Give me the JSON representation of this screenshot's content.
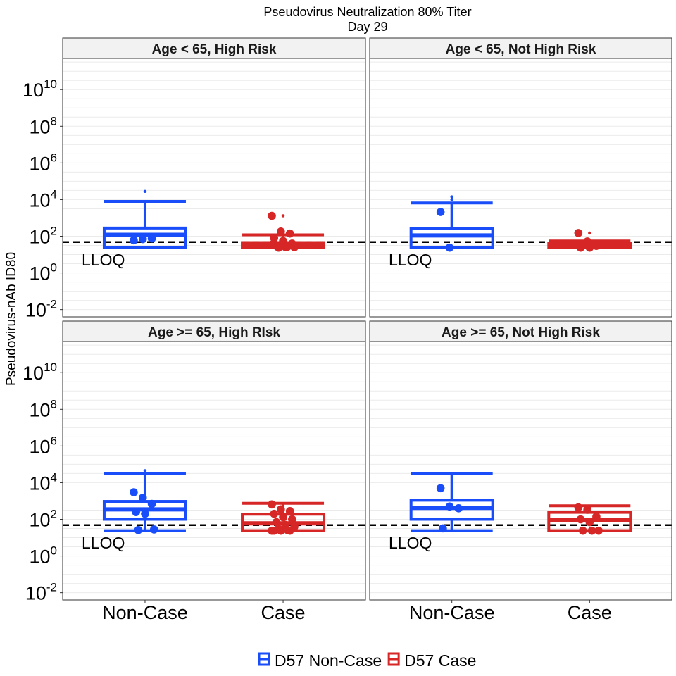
{
  "chart_data": {
    "type": "box",
    "title": "Pseudovirus Neutralization 80% Titer",
    "subtitle": "Day 29",
    "ylabel": "Pseudovirus-nAb ID80",
    "xlabel": "",
    "y_scale": "log10",
    "ylim": [
      0.004,
      500000000000
    ],
    "y_ticks": [
      0.01,
      1,
      100,
      10000,
      1000000,
      100000000,
      10000000000
    ],
    "y_tick_labels": [
      {
        "base": "10",
        "exp": "-2"
      },
      {
        "base": "10",
        "exp": "0"
      },
      {
        "base": "10",
        "exp": "2"
      },
      {
        "base": "10",
        "exp": "4"
      },
      {
        "base": "10",
        "exp": "6"
      },
      {
        "base": "10",
        "exp": "8"
      },
      {
        "base": "10",
        "exp": "10"
      }
    ],
    "categories": [
      "Non-Case",
      "Case"
    ],
    "lloq": {
      "value": 48,
      "label": "LLOQ"
    },
    "legend": {
      "position": "bottom",
      "entries": [
        {
          "label": "D57 Non-Case",
          "color": "#1a4dfa"
        },
        {
          "label": "D57 Case",
          "color": "#d62626"
        }
      ]
    },
    "colors": {
      "Non-Case": "#1a4dfa",
      "Case": "#d62626"
    },
    "panels": [
      {
        "label": "Age < 65, High Risk",
        "boxes": [
          {
            "group": "Non-Case",
            "lower_whisker": 24,
            "q1": 24,
            "median": 120,
            "q3": 280,
            "upper_whisker": 8000,
            "outliers": [
              28000
            ],
            "points": [
              {
                "y": 60,
                "size": "large"
              },
              {
                "y": 70,
                "size": "large"
              },
              {
                "y": 75,
                "size": "large"
              }
            ]
          },
          {
            "group": "Case",
            "lower_whisker": 24,
            "q1": 24,
            "median": 28,
            "q3": 45,
            "upper_whisker": 120,
            "outliers": [
              1300
            ],
            "points": [
              {
                "y": 1300,
                "size": "large"
              },
              {
                "y": 180,
                "size": "large"
              },
              {
                "y": 140,
                "size": "large"
              },
              {
                "y": 80,
                "size": "large"
              },
              {
                "y": 55,
                "size": "large"
              },
              {
                "y": 40,
                "size": "large"
              },
              {
                "y": 30,
                "size": "large"
              },
              {
                "y": 26,
                "size": "large"
              },
              {
                "y": 25,
                "size": "large"
              },
              {
                "y": 24,
                "size": "large"
              },
              {
                "y": 27,
                "size": "large"
              },
              {
                "y": 35,
                "size": "large"
              }
            ]
          }
        ]
      },
      {
        "label": "Age < 65, Not High Risk",
        "boxes": [
          {
            "group": "Non-Case",
            "lower_whisker": 24,
            "q1": 24,
            "median": 110,
            "q3": 270,
            "upper_whisker": 6500,
            "outliers": [
              10000,
              14000
            ],
            "points": [
              {
                "y": 2100,
                "size": "large"
              },
              {
                "y": 24,
                "size": "large"
              }
            ]
          },
          {
            "group": "Case",
            "lower_whisker": 24,
            "q1": 24,
            "median": 28,
            "q3": 40,
            "upper_whisker": 55,
            "outliers": [
              150
            ],
            "points": [
              {
                "y": 150,
                "size": "large"
              },
              {
                "y": 52,
                "size": "large"
              },
              {
                "y": 30,
                "size": "large"
              },
              {
                "y": 24,
                "size": "large"
              },
              {
                "y": 24,
                "size": "large"
              }
            ]
          }
        ]
      },
      {
        "label": "Age >= 65, High RIsk",
        "boxes": [
          {
            "group": "Non-Case",
            "lower_whisker": 24,
            "q1": 100,
            "median": 350,
            "q3": 950,
            "upper_whisker": 30000,
            "outliers": [
              45000
            ],
            "points": [
              {
                "y": 3000,
                "size": "large"
              },
              {
                "y": 1500,
                "size": "large"
              },
              {
                "y": 700,
                "size": "large"
              },
              {
                "y": 250,
                "size": "large"
              },
              {
                "y": 200,
                "size": "large"
              },
              {
                "y": 28,
                "size": "large"
              },
              {
                "y": 26,
                "size": "large"
              }
            ]
          },
          {
            "group": "Case",
            "lower_whisker": 24,
            "q1": 24,
            "median": 60,
            "q3": 190,
            "upper_whisker": 750,
            "outliers": [],
            "points": [
              {
                "y": 650,
                "size": "large"
              },
              {
                "y": 350,
                "size": "large"
              },
              {
                "y": 280,
                "size": "large"
              },
              {
                "y": 200,
                "size": "large"
              },
              {
                "y": 130,
                "size": "large"
              },
              {
                "y": 100,
                "size": "large"
              },
              {
                "y": 70,
                "size": "large"
              },
              {
                "y": 50,
                "size": "large"
              },
              {
                "y": 40,
                "size": "large"
              },
              {
                "y": 30,
                "size": "large"
              },
              {
                "y": 26,
                "size": "large"
              },
              {
                "y": 24,
                "size": "large"
              },
              {
                "y": 24,
                "size": "large"
              },
              {
                "y": 24,
                "size": "large"
              },
              {
                "y": 24,
                "size": "large"
              }
            ]
          }
        ]
      },
      {
        "label": "Age >= 65, Not High Risk",
        "boxes": [
          {
            "group": "Non-Case",
            "lower_whisker": 24,
            "q1": 100,
            "median": 420,
            "q3": 1100,
            "upper_whisker": 30000,
            "outliers": [],
            "points": [
              {
                "y": 5000,
                "size": "large"
              },
              {
                "y": 500,
                "size": "large"
              },
              {
                "y": 400,
                "size": "large"
              },
              {
                "y": 32,
                "size": "large"
              }
            ]
          },
          {
            "group": "Case",
            "lower_whisker": 24,
            "q1": 24,
            "median": 90,
            "q3": 240,
            "upper_whisker": 550,
            "outliers": [],
            "points": [
              {
                "y": 450,
                "size": "large"
              },
              {
                "y": 330,
                "size": "large"
              },
              {
                "y": 140,
                "size": "large"
              },
              {
                "y": 100,
                "size": "large"
              },
              {
                "y": 70,
                "size": "large"
              },
              {
                "y": 24,
                "size": "large"
              },
              {
                "y": 24,
                "size": "large"
              },
              {
                "y": 24,
                "size": "large"
              }
            ]
          }
        ]
      }
    ]
  }
}
